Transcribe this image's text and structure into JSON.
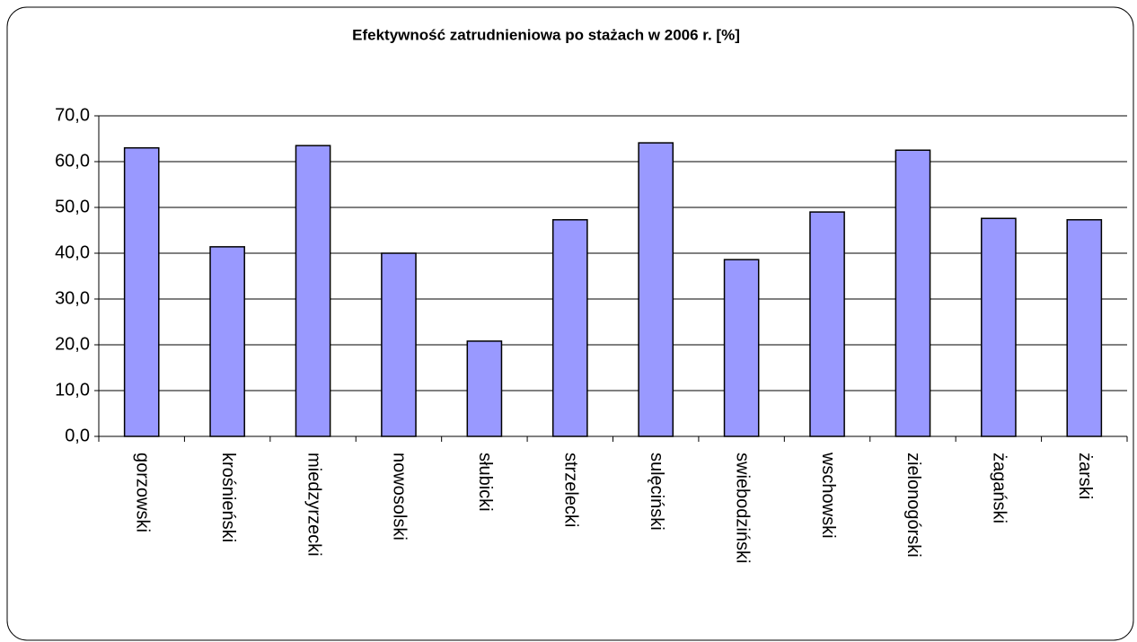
{
  "chart_data": {
    "type": "bar",
    "title": "Efektywność zatrudnieniowa po stażach  w 2006 r. [%]",
    "categories": [
      "gorzowski",
      "krośnieński",
      "miedzyrzecki",
      "nowosolski",
      "słubicki",
      "strzelecki",
      "sulęciński",
      "swiebodziński",
      "wschowski",
      "zielonogórski",
      "żagański",
      "żarski"
    ],
    "values": [
      63.0,
      41.4,
      63.5,
      40.0,
      20.8,
      47.3,
      64.1,
      38.6,
      49.0,
      62.5,
      47.6,
      47.3
    ],
    "color": "#9999ff",
    "ylim": [
      0,
      70
    ],
    "yticks": [
      {
        "value": 0,
        "label": "0,0"
      },
      {
        "value": 10,
        "label": "10,0"
      },
      {
        "value": 20,
        "label": "20,0"
      },
      {
        "value": 30,
        "label": "30,0"
      },
      {
        "value": 40,
        "label": "40,0"
      },
      {
        "value": 50,
        "label": "50,0"
      },
      {
        "value": 60,
        "label": "60,0"
      },
      {
        "value": 70,
        "label": "70,0"
      }
    ],
    "grid": true
  }
}
